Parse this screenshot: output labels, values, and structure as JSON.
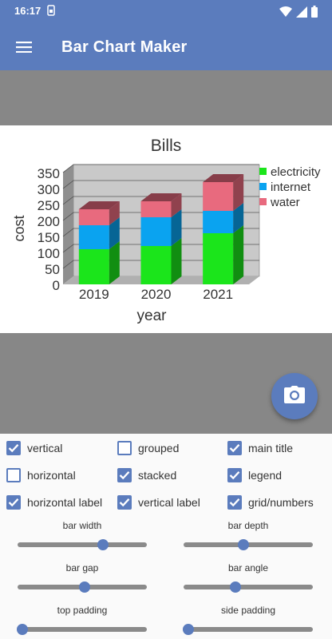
{
  "status_bar": {
    "time": "16:17",
    "sim_icon": "sim-card-icon",
    "icons": [
      "wifi-icon",
      "signal-icon",
      "battery-icon"
    ]
  },
  "app_bar": {
    "title": "Bar Chart Maker",
    "menu_icon": "hamburger-menu-icon"
  },
  "colors": {
    "primary": "#5b7cbd",
    "electricity": "#1be51b",
    "internet": "#0aa3f0",
    "water": "#e86a7e",
    "background_gray": "#878787"
  },
  "chart_data": {
    "type": "bar",
    "stacked": true,
    "style": "3d",
    "title": "Bills",
    "xlabel": "year",
    "ylabel": "cost",
    "categories": [
      "2019",
      "2020",
      "2021"
    ],
    "series": [
      {
        "name": "electricity",
        "values": [
          110,
          120,
          160
        ]
      },
      {
        "name": "internet",
        "values": [
          75,
          90,
          70
        ]
      },
      {
        "name": "water",
        "values": [
          50,
          50,
          90
        ]
      }
    ],
    "ylim": [
      0,
      350
    ],
    "yticks": [
      "0",
      "50",
      "100",
      "150",
      "200",
      "250",
      "300",
      "350"
    ],
    "grid": true,
    "legend_position": "right"
  },
  "fab": {
    "icon": "camera-icon"
  },
  "checkboxes": [
    {
      "label": "vertical",
      "checked": true
    },
    {
      "label": "grouped",
      "checked": false
    },
    {
      "label": "main title",
      "checked": true
    },
    {
      "label": "horizontal",
      "checked": false
    },
    {
      "label": "stacked",
      "checked": true
    },
    {
      "label": "legend",
      "checked": true
    },
    {
      "label": "horizontal label",
      "checked": true
    },
    {
      "label": "vertical label",
      "checked": true
    },
    {
      "label": "grid/numbers",
      "checked": true
    }
  ],
  "sliders": [
    {
      "label": "bar width",
      "value": 0.66
    },
    {
      "label": "bar depth",
      "value": 0.46
    },
    {
      "label": "bar gap",
      "value": 0.52
    },
    {
      "label": "bar angle",
      "value": 0.4
    },
    {
      "label": "top padding",
      "value": 0.04
    },
    {
      "label": "side padding",
      "value": 0.04
    }
  ]
}
